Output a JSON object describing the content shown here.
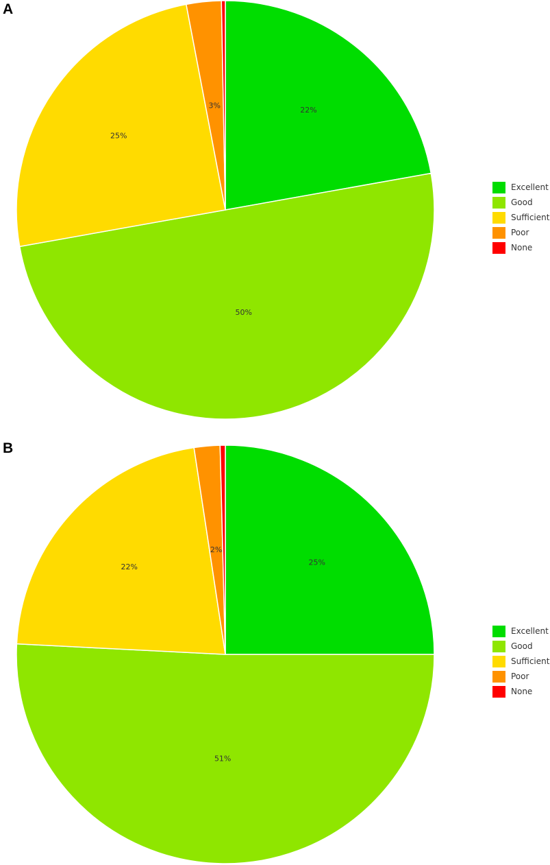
{
  "chart_data": [
    {
      "panel_label": "A",
      "type": "pie",
      "categories": [
        "Excellent",
        "Good",
        "Sufficient",
        "Poor",
        "None"
      ],
      "values": [
        22.2,
        50.0,
        24.8,
        2.7,
        0.3
      ],
      "data_labels": [
        "22%",
        "50%",
        "25%",
        "3%",
        ""
      ],
      "colors": [
        "#00dd00",
        "#8fe600",
        "#ffdb00",
        "#ff9200",
        "#ff0000"
      ],
      "start_angle": "12 o'clock",
      "direction": "clockwise",
      "legend_position": "right"
    },
    {
      "panel_label": "B",
      "type": "pie",
      "categories": [
        "Excellent",
        "Good",
        "Sufficient",
        "Poor",
        "None"
      ],
      "values": [
        25.0,
        50.8,
        21.8,
        2.0,
        0.4
      ],
      "data_labels": [
        "25%",
        "51%",
        "22%",
        "2%",
        ""
      ],
      "colors": [
        "#00dd00",
        "#8fe600",
        "#ffdb00",
        "#ff9200",
        "#ff0000"
      ],
      "start_angle": "12 o'clock",
      "direction": "clockwise",
      "legend_position": "right"
    }
  ]
}
